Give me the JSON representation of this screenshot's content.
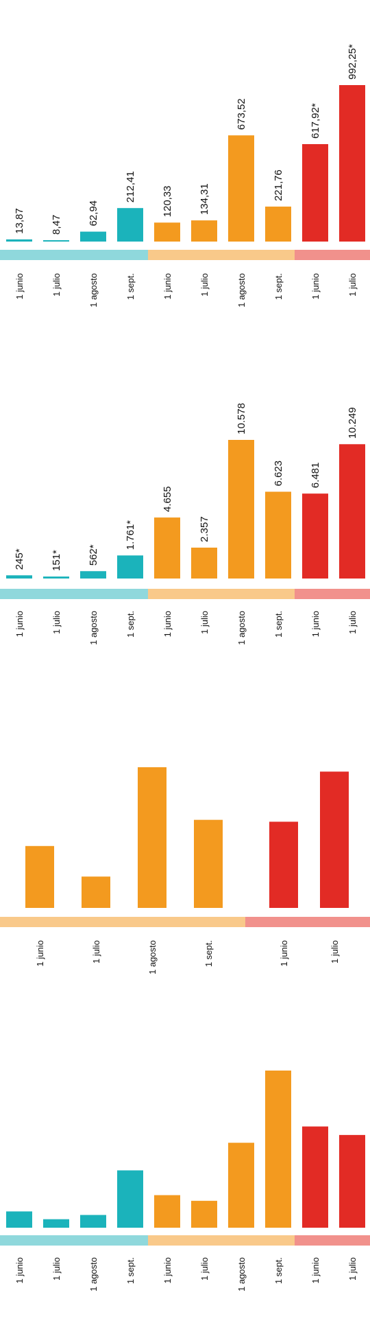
{
  "colors": {
    "teal": "#1bb3bb",
    "orange": "#f39a1f",
    "red": "#e22b25",
    "teal_band": "#8fd8dc",
    "orange_band": "#f9c98a",
    "red_band": "#f1918c"
  },
  "chart_data": [
    {
      "type": "bar",
      "categories": [
        "1 junio",
        "1 julio",
        "1 agosto",
        "1 sept.",
        "1 junio",
        "1 julio",
        "1 agosto",
        "1 sept.",
        "1 junio",
        "1 julio"
      ],
      "values": [
        13.87,
        8.47,
        62.94,
        212.41,
        120.33,
        134.31,
        673.52,
        221.76,
        617.92,
        992.25
      ],
      "value_labels": [
        "13,87",
        "8,47",
        "62,94",
        "212,41",
        "120,33",
        "134,31",
        "673,52",
        "221,76",
        "617,92*",
        "992,25*"
      ],
      "groups": [
        "teal",
        "teal",
        "teal",
        "teal",
        "orange",
        "orange",
        "orange",
        "orange",
        "red",
        "red"
      ],
      "ylim": [
        0,
        992.25
      ]
    },
    {
      "type": "bar",
      "categories": [
        "1 junio",
        "1 julio",
        "1 agosto",
        "1 sept.",
        "1 junio",
        "1 julio",
        "1 agosto",
        "1 sept.",
        "1 junio",
        "1 julio"
      ],
      "values": [
        245,
        151,
        562,
        1761,
        4655,
        2357,
        10578,
        6623,
        6481,
        10249
      ],
      "value_labels": [
        "245*",
        "151*",
        "562*",
        "1.761*",
        "4.655",
        "2.357",
        "10.578",
        "6.623",
        "6.481",
        "10.249"
      ],
      "groups": [
        "teal",
        "teal",
        "teal",
        "teal",
        "orange",
        "orange",
        "orange",
        "orange",
        "red",
        "red"
      ],
      "ylim": [
        0,
        10578
      ]
    },
    {
      "type": "bar",
      "categories": [
        "1 junio",
        "1 julio",
        "1 agosto",
        "1 sept.",
        "1 junio",
        "1 julio"
      ],
      "values": [
        4655,
        2357,
        10578,
        6623,
        6481,
        10249
      ],
      "groups": [
        "orange",
        "orange",
        "orange",
        "orange",
        "red",
        "red"
      ],
      "ylim": [
        0,
        10578
      ]
    },
    {
      "type": "bar",
      "categories": [
        "1 junio",
        "1 julio",
        "1 agosto",
        "1 sept.",
        "1 junio",
        "1 julio",
        "1 agosto",
        "1 sept.",
        "1 junio",
        "1 julio"
      ],
      "values": [
        2.3,
        1.2,
        1.8,
        8.1,
        4.6,
        3.8,
        12.0,
        22.2,
        14.3,
        13.1
      ],
      "groups": [
        "teal",
        "teal",
        "teal",
        "teal",
        "orange",
        "orange",
        "orange",
        "orange",
        "red",
        "red"
      ],
      "ylim": [
        0,
        22.2
      ]
    }
  ]
}
